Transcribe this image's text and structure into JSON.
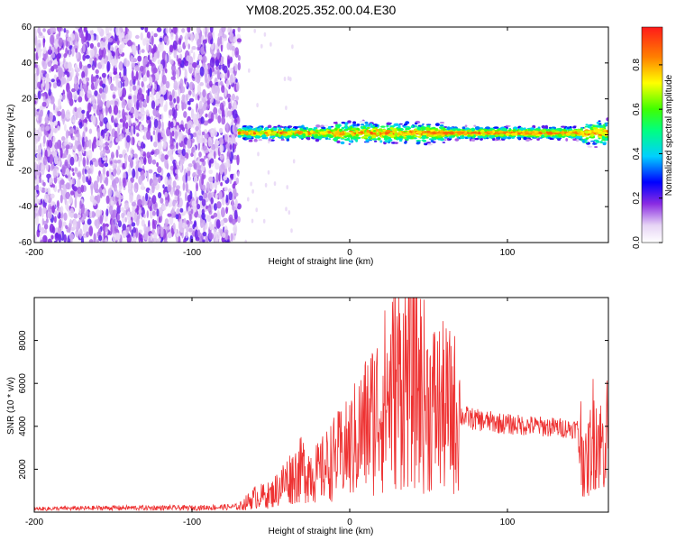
{
  "figure_title": "YM08.2025.352.00.04.E30",
  "chart_data": [
    {
      "type": "heatmap",
      "title": "YM08.2025.352.00.04.E30",
      "xlabel": "Height of straight line (km)",
      "ylabel": "Frequency (Hz)",
      "xlim": [
        -200,
        164
      ],
      "ylim": [
        -60,
        60
      ],
      "x_ticks": [
        -200,
        -100,
        0,
        100
      ],
      "y_ticks": [
        -60,
        -40,
        -20,
        0,
        20,
        40,
        60
      ],
      "colorbar": {
        "label": "Normalized spectral amplitude",
        "range": [
          0.0,
          0.97
        ],
        "ticks": [
          0.0,
          0.2,
          0.4,
          0.6,
          0.8
        ]
      },
      "regions": [
        {
          "description": "noise",
          "x_range": [
            -200,
            -70
          ],
          "freq_range": [
            -60,
            60
          ],
          "amplitude": [
            0.05,
            0.3
          ]
        },
        {
          "description": "signal band",
          "x_range": [
            -70,
            164
          ],
          "freq_range": [
            -8,
            8
          ],
          "amplitude": [
            0.2,
            0.95
          ]
        }
      ]
    },
    {
      "type": "line",
      "xlabel": "Height of straight line (km)",
      "ylabel": "SNR (10 * v/v)",
      "xlim": [
        -200,
        164
      ],
      "ylim": [
        0,
        10000
      ],
      "x_ticks": [
        -200,
        -100,
        0,
        100
      ],
      "y_ticks": [
        2000,
        4000,
        6000,
        8000
      ],
      "series": [
        {
          "name": "SNR",
          "color": "#ee3333",
          "x": [
            -200,
            -150,
            -100,
            -70,
            -60,
            -50,
            -40,
            -30,
            -20,
            -10,
            0,
            10,
            20,
            30,
            40,
            50,
            60,
            70,
            80,
            100,
            120,
            140,
            145,
            150,
            155,
            160,
            164
          ],
          "y": [
            150,
            200,
            200,
            250,
            700,
            800,
            1500,
            2000,
            1800,
            2500,
            3000,
            4000,
            5000,
            6000,
            6500,
            5000,
            4800,
            4500,
            4300,
            4100,
            4000,
            3900,
            3900,
            2000,
            4000,
            3000,
            4000
          ]
        }
      ]
    }
  ]
}
